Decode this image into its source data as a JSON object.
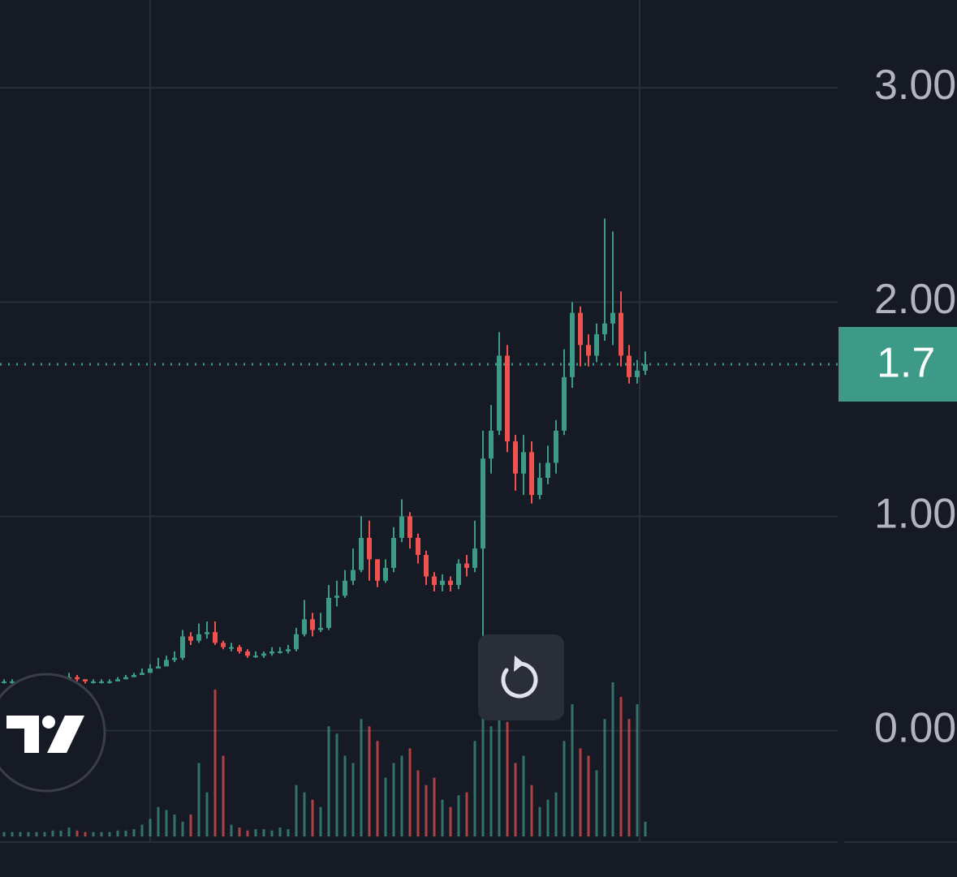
{
  "chart_data": {
    "type": "candlestick",
    "open": [
      0.23,
      0.23,
      0.23,
      0.23,
      0.23,
      0.23,
      0.23,
      0.24,
      0.24,
      0.25,
      0.24,
      0.23,
      0.23,
      0.23,
      0.23,
      0.24,
      0.25,
      0.26,
      0.27,
      0.29,
      0.3,
      0.33,
      0.34,
      0.44,
      0.42,
      0.45,
      0.46,
      0.41,
      0.39,
      0.39,
      0.37,
      0.35,
      0.35,
      0.36,
      0.37,
      0.37,
      0.38,
      0.45,
      0.52,
      0.47,
      0.48,
      0.62,
      0.63,
      0.7,
      0.75,
      0.9,
      0.8,
      0.7,
      0.76,
      0.9,
      1.0,
      0.9,
      0.82,
      0.72,
      0.68,
      0.7,
      0.68,
      0.78,
      0.76,
      0.85,
      1.27,
      1.4,
      1.75,
      1.35,
      1.2,
      1.3,
      1.1,
      1.18,
      1.25,
      1.4,
      1.65,
      1.95,
      1.8,
      1.75,
      1.85,
      1.9,
      1.95,
      1.75,
      1.65,
      1.68
    ],
    "high": [
      0.24,
      0.24,
      0.24,
      0.24,
      0.24,
      0.24,
      0.25,
      0.25,
      0.27,
      0.26,
      0.24,
      0.24,
      0.24,
      0.24,
      0.25,
      0.26,
      0.27,
      0.29,
      0.31,
      0.34,
      0.35,
      0.37,
      0.47,
      0.46,
      0.5,
      0.51,
      0.51,
      0.42,
      0.41,
      0.4,
      0.38,
      0.37,
      0.37,
      0.39,
      0.39,
      0.4,
      0.48,
      0.61,
      0.55,
      0.55,
      0.68,
      0.7,
      0.75,
      0.85,
      1.0,
      0.98,
      0.8,
      0.8,
      0.95,
      1.08,
      1.02,
      0.92,
      0.84,
      0.74,
      0.73,
      0.72,
      0.8,
      0.82,
      0.98,
      1.4,
      1.52,
      1.86,
      1.8,
      1.38,
      1.38,
      1.35,
      1.25,
      1.33,
      1.45,
      1.78,
      2.0,
      1.98,
      1.85,
      1.9,
      2.39,
      2.33,
      2.05,
      1.8,
      1.73,
      1.77
    ],
    "low": [
      0.22,
      0.22,
      0.22,
      0.22,
      0.22,
      0.22,
      0.23,
      0.23,
      0.24,
      0.23,
      0.22,
      0.22,
      0.22,
      0.22,
      0.23,
      0.24,
      0.25,
      0.26,
      0.27,
      0.29,
      0.3,
      0.32,
      0.33,
      0.4,
      0.41,
      0.43,
      0.4,
      0.38,
      0.37,
      0.36,
      0.34,
      0.34,
      0.34,
      0.35,
      0.36,
      0.36,
      0.37,
      0.44,
      0.44,
      0.46,
      0.47,
      0.58,
      0.62,
      0.68,
      0.74,
      0.7,
      0.67,
      0.69,
      0.74,
      0.88,
      0.85,
      0.78,
      0.68,
      0.65,
      0.65,
      0.65,
      0.66,
      0.72,
      0.74,
      0.4,
      1.2,
      1.38,
      1.3,
      1.12,
      1.1,
      1.06,
      1.08,
      1.15,
      1.2,
      1.38,
      1.6,
      1.7,
      1.7,
      1.72,
      1.82,
      1.8,
      1.7,
      1.62,
      1.62,
      1.66
    ],
    "close": [
      0.23,
      0.23,
      0.23,
      0.23,
      0.23,
      0.23,
      0.24,
      0.24,
      0.25,
      0.24,
      0.23,
      0.23,
      0.23,
      0.23,
      0.24,
      0.25,
      0.26,
      0.27,
      0.29,
      0.3,
      0.33,
      0.34,
      0.44,
      0.42,
      0.45,
      0.46,
      0.41,
      0.39,
      0.39,
      0.37,
      0.35,
      0.35,
      0.36,
      0.37,
      0.37,
      0.38,
      0.45,
      0.52,
      0.47,
      0.48,
      0.62,
      0.63,
      0.7,
      0.75,
      0.9,
      0.8,
      0.7,
      0.76,
      0.9,
      1.0,
      0.9,
      0.82,
      0.72,
      0.68,
      0.7,
      0.68,
      0.78,
      0.76,
      0.85,
      1.27,
      1.4,
      1.75,
      1.35,
      1.2,
      1.3,
      1.1,
      1.18,
      1.25,
      1.4,
      1.65,
      1.95,
      1.8,
      1.75,
      1.85,
      1.9,
      1.95,
      1.75,
      1.65,
      1.68,
      1.71
    ],
    "volume": [
      3,
      3,
      3,
      3,
      3,
      3,
      4,
      4,
      6,
      4,
      3,
      3,
      3,
      3,
      4,
      4,
      5,
      8,
      12,
      20,
      18,
      15,
      10,
      15,
      50,
      30,
      100,
      55,
      8,
      6,
      4,
      5,
      5,
      4,
      6,
      5,
      35,
      30,
      25,
      20,
      75,
      70,
      55,
      50,
      80,
      75,
      65,
      40,
      50,
      55,
      60,
      45,
      35,
      40,
      25,
      20,
      28,
      30,
      65,
      100,
      75,
      80,
      78,
      50,
      55,
      35,
      20,
      25,
      30,
      65,
      90,
      60,
      55,
      45,
      80,
      105,
      95,
      80,
      90,
      10
    ],
    "up_color": "#3d9a86",
    "down_color": "#ef5350",
    "ylim": [
      -0.52,
      3.41
    ],
    "yticks": [
      {
        "value": 0,
        "label": "0.00"
      },
      {
        "value": 1,
        "label": "1.00"
      },
      {
        "value": 2,
        "label": "2.00"
      },
      {
        "value": 3,
        "label": "3.00"
      }
    ],
    "grid": true,
    "last_price": {
      "value": 1.71,
      "label": "1.7"
    }
  }
}
